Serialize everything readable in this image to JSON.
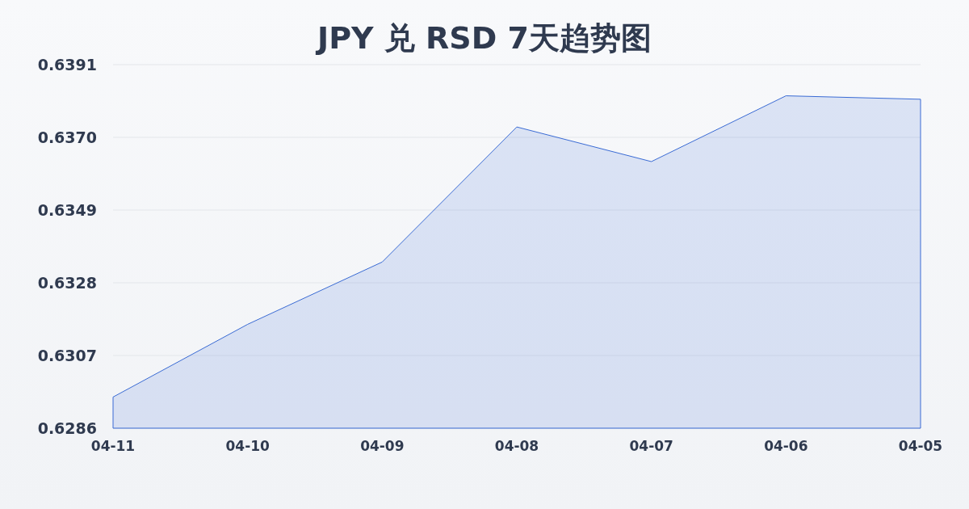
{
  "chart_data": {
    "type": "area",
    "title": "JPY 兑 RSD 7天趋势图",
    "categories": [
      "04-11",
      "04-10",
      "04-09",
      "04-08",
      "04-07",
      "04-06",
      "04-05"
    ],
    "series": [
      {
        "color": "#3a6bd4",
        "values": [
          0.6295,
          0.6316,
          0.6334,
          0.6373,
          0.6363,
          0.6382,
          0.6381
        ]
      }
    ],
    "ylim": [
      0.6286,
      0.6391
    ],
    "yticks": [
      0.6286,
      0.6307,
      0.6328,
      0.6349,
      {
        "value": 0.637,
        "label": "0.6370"
      },
      0.6391
    ],
    "grid": "y"
  }
}
